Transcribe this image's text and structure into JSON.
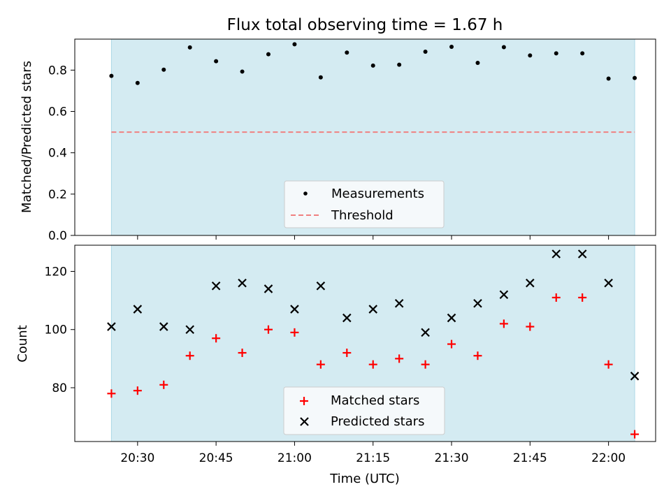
{
  "chart_data": [
    {
      "type": "scatter",
      "title": "Flux total observing time = 1.67 h",
      "xlabel": "",
      "ylabel": "Matched/Predicted stars",
      "x_unit": "time UTC",
      "xlim": [
        "20:18",
        "22:09"
      ],
      "ylim": [
        0,
        0.95
      ],
      "yticks": [
        "0.0",
        "0.2",
        "0.4",
        "0.6",
        "0.8"
      ],
      "ytick_values": [
        0,
        0.2,
        0.4,
        0.6,
        0.8
      ],
      "shaded_span": [
        "20:25",
        "22:05"
      ],
      "shade_color": "#add8e6",
      "x": [
        "20:25",
        "20:30",
        "20:35",
        "20:40",
        "20:45",
        "20:50",
        "20:55",
        "21:00",
        "21:05",
        "21:10",
        "21:15",
        "21:20",
        "21:25",
        "21:30",
        "21:35",
        "21:40",
        "21:45",
        "21:50",
        "21:55",
        "22:00",
        "22:05"
      ],
      "series": [
        {
          "name": "Measurements",
          "marker": "dot",
          "color": "#000000",
          "values": [
            0.772,
            0.738,
            0.802,
            0.91,
            0.843,
            0.793,
            0.877,
            0.925,
            0.765,
            0.885,
            0.822,
            0.826,
            0.889,
            0.913,
            0.835,
            0.911,
            0.871,
            0.881,
            0.881,
            0.759,
            0.762
          ]
        },
        {
          "name": "Threshold",
          "marker": "dashed-line",
          "color": "#f08080",
          "values": [
            0.5,
            0.5
          ]
        }
      ],
      "legend": {
        "placement": "lower-center",
        "entries": [
          "Measurements",
          "Threshold"
        ]
      }
    },
    {
      "type": "scatter",
      "title": "",
      "xlabel": "Time (UTC)",
      "ylabel": "Count",
      "xlim": [
        "20:18",
        "22:09"
      ],
      "ylim": [
        61.5,
        129
      ],
      "xticks": [
        "20:30",
        "20:45",
        "21:00",
        "21:15",
        "21:30",
        "21:45",
        "22:00"
      ],
      "yticks": [
        "80",
        "100",
        "120"
      ],
      "ytick_values": [
        80,
        100,
        120
      ],
      "shaded_span": [
        "20:25",
        "22:05"
      ],
      "shade_color": "#add8e6",
      "x": [
        "20:25",
        "20:30",
        "20:35",
        "20:40",
        "20:45",
        "20:50",
        "20:55",
        "21:00",
        "21:05",
        "21:10",
        "21:15",
        "21:20",
        "21:25",
        "21:30",
        "21:35",
        "21:40",
        "21:45",
        "21:50",
        "21:55",
        "22:00",
        "22:05"
      ],
      "series": [
        {
          "name": "Matched stars",
          "marker": "plus",
          "color": "#ff0000",
          "values": [
            78,
            79,
            81,
            91,
            97,
            92,
            100,
            99,
            88,
            92,
            88,
            90,
            88,
            95,
            91,
            102,
            101,
            111,
            111,
            88,
            64
          ]
        },
        {
          "name": "Predicted stars",
          "marker": "x",
          "color": "#000000",
          "values": [
            101,
            107,
            101,
            100,
            115,
            116,
            114,
            107,
            115,
            104,
            107,
            109,
            99,
            104,
            109,
            112,
            116,
            126,
            126,
            116,
            84
          ]
        }
      ],
      "legend": {
        "placement": "lower-center",
        "entries": [
          "Matched stars",
          "Predicted stars"
        ]
      }
    }
  ]
}
